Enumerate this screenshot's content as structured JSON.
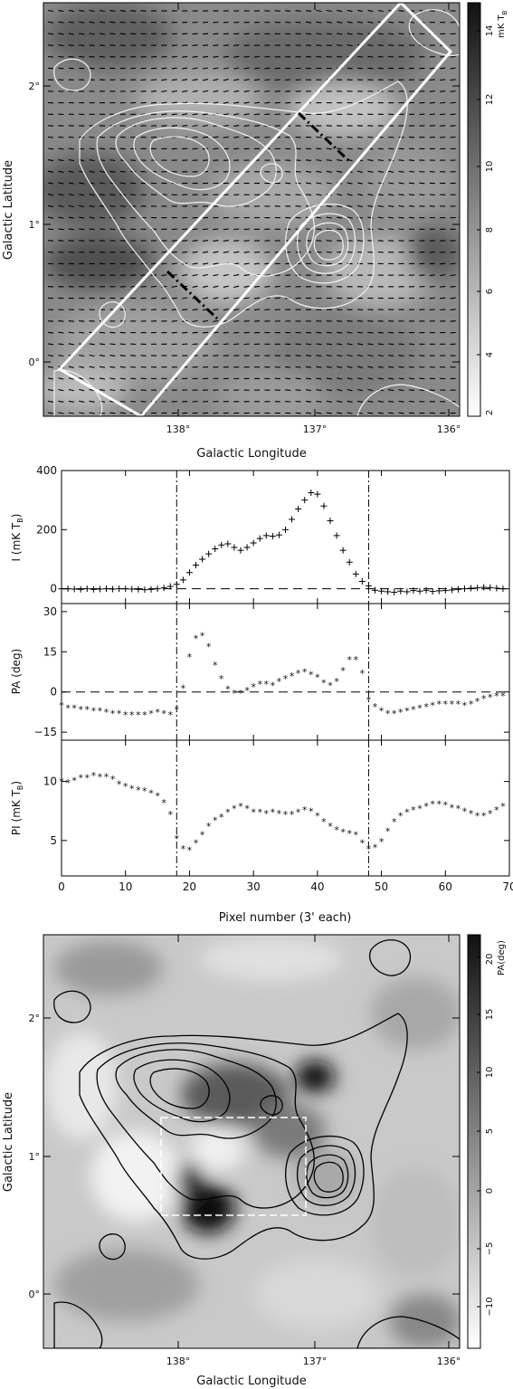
{
  "top_map": {
    "xlabel": "Galactic Longitude",
    "ylabel": "Galactic Latitude",
    "xticks": [
      "138°",
      "137°",
      "136°"
    ],
    "yticks": [
      "2°",
      "1°",
      "0°"
    ],
    "colorbar_label": "mK T",
    "colorbar_sub": "B",
    "colorbar_ticks": [
      "14",
      "12",
      "10",
      "8",
      "6",
      "4",
      "2"
    ]
  },
  "bottom_map": {
    "xlabel": "Galactic Longitude",
    "ylabel": "Galactic Latitude",
    "xticks": [
      "138°",
      "137°",
      "136°"
    ],
    "yticks": [
      "2°",
      "1°",
      "0°"
    ],
    "colorbar_label": "PA(deg)",
    "colorbar_ticks": [
      "20",
      "15",
      "10",
      "5",
      "0",
      "−5",
      "−10"
    ]
  },
  "profile_labels": {
    "xlabel": "Pixel number (3' each)",
    "ylabel_I": "I (mK T",
    "ylabel_PA": "PA (deg)",
    "ylabel_PI": "PI (mK T",
    "sub_B": "B",
    "close_paren": ")"
  },
  "chart_data": [
    {
      "type": "scatter",
      "title": "",
      "xlabel": "Pixel number (3' each)",
      "ylabel": "I (mK TB)",
      "xlim": [
        0,
        70
      ],
      "ylim": [
        -50,
        400
      ],
      "yticks": [
        0,
        200,
        400
      ],
      "yticklabels": [
        "0",
        "200",
        "400"
      ],
      "marker": "+",
      "vertical_lines": [
        18,
        48
      ],
      "horizontal_line": 0,
      "x": [
        0,
        1,
        2,
        3,
        4,
        5,
        6,
        7,
        8,
        9,
        10,
        11,
        12,
        13,
        14,
        15,
        16,
        17,
        18,
        19,
        20,
        21,
        22,
        23,
        24,
        25,
        26,
        27,
        28,
        29,
        30,
        31,
        32,
        33,
        34,
        35,
        36,
        37,
        38,
        39,
        40,
        41,
        42,
        43,
        44,
        45,
        46,
        47,
        48,
        49,
        50,
        51,
        52,
        53,
        54,
        55,
        56,
        57,
        58,
        59,
        60,
        61,
        62,
        63,
        64,
        65,
        66,
        67,
        68,
        69
      ],
      "y": [
        0,
        0,
        -1,
        -2,
        0,
        -2,
        -1,
        0,
        -1,
        0,
        0,
        -1,
        -2,
        -3,
        -2,
        0,
        3,
        8,
        15,
        30,
        55,
        80,
        100,
        118,
        135,
        148,
        152,
        140,
        130,
        140,
        155,
        170,
        180,
        178,
        182,
        200,
        235,
        270,
        300,
        325,
        320,
        280,
        230,
        180,
        130,
        90,
        50,
        25,
        10,
        -5,
        -8,
        -10,
        -12,
        -8,
        -10,
        -6,
        -8,
        -5,
        -9,
        -7,
        -6,
        -4,
        -2,
        0,
        2,
        3,
        5,
        4,
        2,
        0
      ]
    },
    {
      "type": "scatter",
      "title": "",
      "xlabel": "Pixel number (3' each)",
      "ylabel": "PA (deg)",
      "xlim": [
        0,
        70
      ],
      "ylim": [
        -18,
        33
      ],
      "yticks": [
        -15,
        0,
        15,
        30
      ],
      "yticklabels": [
        "−15",
        "0",
        "15",
        "30"
      ],
      "marker": "*",
      "vertical_lines": [
        18,
        48
      ],
      "horizontal_line": 0,
      "x": [
        0,
        1,
        2,
        3,
        4,
        5,
        6,
        7,
        8,
        9,
        10,
        11,
        12,
        13,
        14,
        15,
        16,
        17,
        18,
        19,
        20,
        21,
        22,
        23,
        24,
        25,
        26,
        27,
        28,
        29,
        30,
        31,
        32,
        33,
        34,
        35,
        36,
        37,
        38,
        39,
        40,
        41,
        42,
        43,
        44,
        45,
        46,
        47,
        48,
        49,
        50,
        51,
        52,
        53,
        54,
        55,
        56,
        57,
        58,
        59,
        60,
        61,
        62,
        63,
        64,
        65,
        66,
        67,
        68,
        69
      ],
      "y": [
        -5,
        -6,
        -6,
        -6.5,
        -6.5,
        -7,
        -7,
        -7.5,
        -8,
        -8,
        -8.5,
        -8.5,
        -8.5,
        -8.5,
        -8,
        -7.5,
        -8,
        -8.5,
        -6.5,
        1.5,
        13,
        20,
        21,
        17,
        10,
        5,
        1,
        -0.5,
        -0.5,
        0.5,
        2,
        3,
        3,
        2.5,
        4,
        5,
        6,
        7,
        7.5,
        6.5,
        5.5,
        3.5,
        2.5,
        4,
        8,
        12,
        12,
        7,
        -3,
        -5.5,
        -7,
        -8,
        -8,
        -7.5,
        -7,
        -6.5,
        -6,
        -5.5,
        -5,
        -4.5,
        -4.5,
        -4.5,
        -4.5,
        -5,
        -4.5,
        -3.5,
        -2.5,
        -2,
        -1.5,
        -1.5
      ]
    },
    {
      "type": "scatter",
      "title": "",
      "xlabel": "Pixel number (3' each)",
      "ylabel": "PI (mK TB)",
      "xlim": [
        0,
        70
      ],
      "ylim": [
        2,
        13.5
      ],
      "yticks": [
        5,
        10
      ],
      "yticklabels": [
        "5",
        "10"
      ],
      "xticks": [
        0,
        10,
        20,
        30,
        40,
        50,
        60,
        70
      ],
      "xticklabels": [
        "0",
        "10",
        "20",
        "30",
        "40",
        "50",
        "60",
        "70"
      ],
      "marker": "*",
      "vertical_lines": [
        18,
        48
      ],
      "x": [
        0,
        1,
        2,
        3,
        4,
        5,
        6,
        7,
        8,
        9,
        10,
        11,
        12,
        13,
        14,
        15,
        16,
        17,
        18,
        19,
        20,
        21,
        22,
        23,
        24,
        25,
        26,
        27,
        28,
        29,
        30,
        31,
        32,
        33,
        34,
        35,
        36,
        37,
        38,
        39,
        40,
        41,
        42,
        43,
        44,
        45,
        46,
        47,
        48,
        49,
        50,
        51,
        52,
        53,
        54,
        55,
        56,
        57,
        58,
        59,
        60,
        61,
        62,
        63,
        64,
        65,
        66,
        67,
        68,
        69
      ],
      "y": [
        10,
        9.9,
        10.1,
        10.3,
        10.3,
        10.5,
        10.4,
        10.4,
        10.2,
        9.8,
        9.6,
        9.4,
        9.3,
        9.2,
        9,
        8.8,
        8.2,
        7.2,
        5.2,
        4.3,
        4.2,
        4.8,
        5.5,
        6.2,
        6.7,
        7,
        7.4,
        7.7,
        7.9,
        7.7,
        7.4,
        7.4,
        7.3,
        7.4,
        7.3,
        7.2,
        7.2,
        7.4,
        7.6,
        7.5,
        7.1,
        6.6,
        6.2,
        5.9,
        5.7,
        5.6,
        5.5,
        4.8,
        4.3,
        4.4,
        4.9,
        5.8,
        6.6,
        7.1,
        7.4,
        7.6,
        7.7,
        7.9,
        8.1,
        8.1,
        8,
        7.8,
        7.7,
        7.5,
        7.3,
        7.1,
        7.1,
        7.3,
        7.6,
        7.9
      ]
    }
  ]
}
